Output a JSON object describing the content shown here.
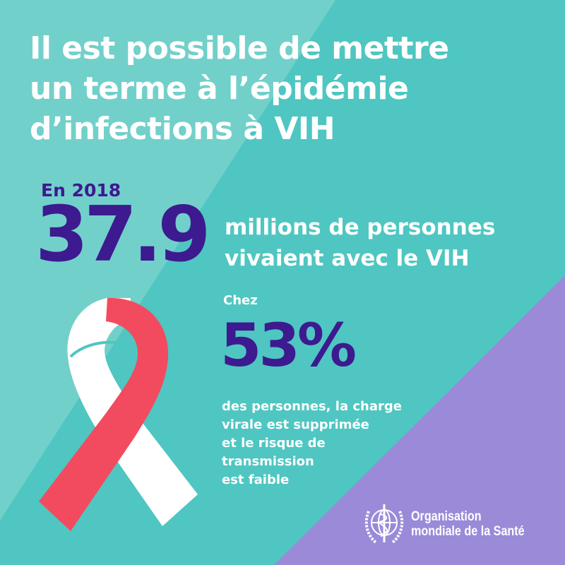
{
  "colors": {
    "teal": "#4fc6c1",
    "light_teal": "#72d0ca",
    "purple": "#9a8ad8",
    "dark_purple": "#3d1a8f",
    "ribbon_red": "#f24b5f",
    "ribbon_white": "#ffffff"
  },
  "title": [
    "Il est possible de mettre",
    "un terme à l’épidémie",
    "d’infections à VIH"
  ],
  "stat1": {
    "year_label": "En 2018",
    "value": "37.9",
    "caption": [
      "millions de personnes",
      "vivaient avec le VIH"
    ]
  },
  "stat2": {
    "prefix": "Chez",
    "value": "53%",
    "caption": [
      "des personnes, la charge",
      "virale est supprimée",
      "et le risque de",
      "transmission",
      "est faible"
    ]
  },
  "ribbon_icon": "hiv-awareness-ribbon",
  "logo": {
    "icon": "who-emblem",
    "text": [
      "Organisation",
      "mondiale de la Santé"
    ]
  }
}
